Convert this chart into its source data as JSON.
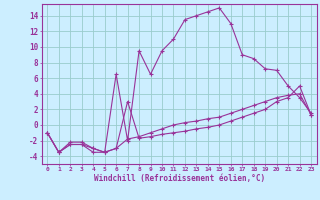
{
  "xlabel": "Windchill (Refroidissement éolien,°C)",
  "background_color": "#cceeff",
  "grid_color": "#99cccc",
  "line_color": "#993399",
  "x_ticks": [
    0,
    1,
    2,
    3,
    4,
    5,
    6,
    7,
    8,
    9,
    10,
    11,
    12,
    13,
    14,
    15,
    16,
    17,
    18,
    19,
    20,
    21,
    22,
    23
  ],
  "yticks": [
    -4,
    -2,
    0,
    2,
    4,
    6,
    8,
    10,
    12,
    14
  ],
  "ylim": [
    -5,
    15.5
  ],
  "xlim": [
    -0.5,
    23.5
  ],
  "series": [
    {
      "x": [
        0,
        1,
        2,
        3,
        4,
        5,
        6,
        7,
        8,
        9,
        10,
        11,
        12,
        13,
        14,
        15,
        16,
        17,
        18,
        19,
        20,
        21,
        22,
        23
      ],
      "y": [
        -1,
        -3.5,
        -2.5,
        -2.5,
        -3.5,
        -3.5,
        6.5,
        -2.0,
        9.5,
        6.5,
        9.5,
        11.0,
        13.5,
        14.0,
        14.5,
        15.0,
        13.0,
        9.0,
        8.5,
        7.2,
        7.0,
        5.0,
        3.5,
        1.5
      ]
    },
    {
      "x": [
        0,
        1,
        2,
        3,
        4,
        5,
        6,
        7,
        8,
        9,
        10,
        11,
        12,
        13,
        14,
        15,
        16,
        17,
        18,
        19,
        20,
        21,
        22,
        23
      ],
      "y": [
        -1,
        -3.5,
        -2.5,
        -2.5,
        -3.0,
        -3.5,
        -3.0,
        3.0,
        -1.7,
        -1.5,
        -1.2,
        -1.0,
        -0.8,
        -0.5,
        -0.3,
        0.0,
        0.5,
        1.0,
        1.5,
        2.0,
        3.0,
        3.5,
        5.0,
        1.3
      ]
    },
    {
      "x": [
        0,
        1,
        2,
        3,
        4,
        5,
        6,
        7,
        8,
        9,
        10,
        11,
        12,
        13,
        14,
        15,
        16,
        17,
        18,
        19,
        20,
        21,
        22,
        23
      ],
      "y": [
        -1,
        -3.5,
        -2.2,
        -2.2,
        -3.0,
        -3.5,
        -3.0,
        -1.8,
        -1.5,
        -1.0,
        -0.5,
        0.0,
        0.3,
        0.5,
        0.8,
        1.0,
        1.5,
        2.0,
        2.5,
        3.0,
        3.5,
        3.8,
        4.0,
        1.3
      ]
    }
  ]
}
